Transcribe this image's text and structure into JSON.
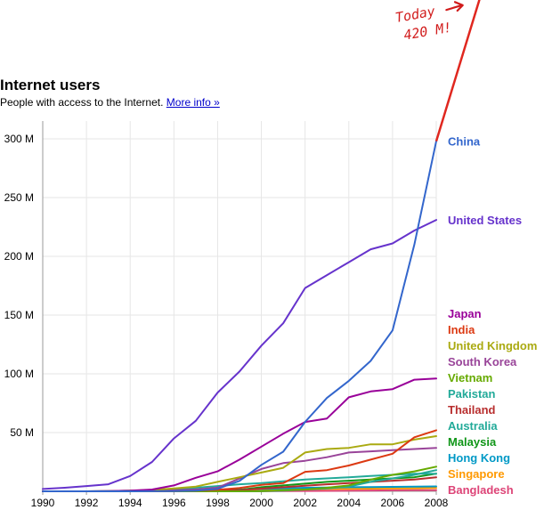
{
  "header": {
    "title": "Internet users",
    "subtitle": "People with access to the Internet.",
    "more_info": "More info »"
  },
  "annotation": {
    "line1": "Today",
    "line2": "420 M!",
    "color": "#e0271f"
  },
  "chart_data": {
    "type": "line",
    "title": "Internet users",
    "subtitle": "People with access to the Internet.",
    "xlabel": "",
    "ylabel": "",
    "xlim": [
      1990,
      2008
    ],
    "ylim": [
      0,
      300
    ],
    "x_ticks": [
      1990,
      1992,
      1994,
      1996,
      1998,
      2000,
      2002,
      2004,
      2006,
      2008
    ],
    "x_tick_labels": [
      "1990",
      "1992",
      "1994",
      "1996",
      "1998",
      "2000",
      "2002",
      "2004",
      "2006",
      "2008"
    ],
    "y_ticks": [
      0,
      50,
      100,
      150,
      200,
      250,
      300
    ],
    "y_tick_labels": [
      "",
      "50 M",
      "100 M",
      "150 M",
      "200 M",
      "250 M",
      "300 M"
    ],
    "grid": true,
    "legend": "right",
    "series": [
      {
        "name": "China",
        "color": "#3366cc",
        "x": [
          1990,
          1991,
          1992,
          1993,
          1994,
          1995,
          1996,
          1997,
          1998,
          1999,
          2000,
          2001,
          2002,
          2003,
          2004,
          2005,
          2006,
          2007,
          2008
        ],
        "y": [
          0,
          0,
          0,
          0,
          0,
          0.1,
          0.2,
          0.6,
          2.1,
          8.9,
          22.5,
          33.7,
          59.1,
          79.5,
          94,
          111,
          137,
          210,
          298
        ]
      },
      {
        "name": "United States",
        "color": "#6633cc",
        "x": [
          1990,
          1991,
          1992,
          1993,
          1994,
          1995,
          1996,
          1997,
          1998,
          1999,
          2000,
          2001,
          2002,
          2003,
          2004,
          2005,
          2006,
          2007,
          2008
        ],
        "y": [
          2,
          3,
          4.5,
          6,
          13,
          25,
          45,
          60,
          84,
          102,
          124,
          143,
          173,
          184,
          195,
          206,
          211,
          222,
          231
        ]
      },
      {
        "name": "Japan",
        "color": "#990099",
        "x": [
          1990,
          1991,
          1992,
          1993,
          1994,
          1995,
          1996,
          1997,
          1998,
          1999,
          2000,
          2001,
          2002,
          2003,
          2004,
          2005,
          2006,
          2007,
          2008
        ],
        "y": [
          0,
          0,
          0,
          0.2,
          0.5,
          1.5,
          5,
          11.5,
          17,
          27,
          38,
          49,
          59,
          62,
          80,
          85,
          87,
          95,
          96
        ]
      },
      {
        "name": "India",
        "color": "#dc3912",
        "x": [
          1990,
          1991,
          1992,
          1993,
          1994,
          1995,
          1996,
          1997,
          1998,
          1999,
          2000,
          2001,
          2002,
          2003,
          2004,
          2005,
          2006,
          2007,
          2008
        ],
        "y": [
          0,
          0,
          0,
          0,
          0,
          0.1,
          0.2,
          0.5,
          1.4,
          2.8,
          5.5,
          7,
          16.6,
          18,
          22,
          27,
          32,
          46,
          52
        ]
      },
      {
        "name": "United Kingdom",
        "color": "#aaaa11",
        "x": [
          1990,
          1991,
          1992,
          1993,
          1994,
          1995,
          1996,
          1997,
          1998,
          1999,
          2000,
          2001,
          2002,
          2003,
          2004,
          2005,
          2006,
          2007,
          2008
        ],
        "y": [
          0,
          0,
          0,
          0.2,
          0.5,
          1.1,
          2.4,
          4,
          8,
          12,
          16,
          20,
          33,
          36,
          37,
          40,
          40,
          44,
          47
        ]
      },
      {
        "name": "South Korea",
        "color": "#994499",
        "x": [
          1990,
          1991,
          1992,
          1993,
          1994,
          1995,
          1996,
          1997,
          1998,
          1999,
          2000,
          2001,
          2002,
          2003,
          2004,
          2005,
          2006,
          2007,
          2008
        ],
        "y": [
          0,
          0,
          0,
          0.1,
          0.1,
          0.4,
          0.8,
          1.6,
          3.1,
          10.9,
          19,
          24,
          26,
          29,
          33,
          34,
          35,
          36,
          37
        ]
      },
      {
        "name": "Vietnam",
        "color": "#66aa00",
        "x": [
          1990,
          1991,
          1992,
          1993,
          1994,
          1995,
          1996,
          1997,
          1998,
          1999,
          2000,
          2001,
          2002,
          2003,
          2004,
          2005,
          2006,
          2007,
          2008
        ],
        "y": [
          0,
          0,
          0,
          0,
          0,
          0,
          0,
          0,
          0,
          0.1,
          0.2,
          1,
          1.5,
          3,
          5,
          10,
          14,
          17,
          21
        ]
      },
      {
        "name": "Pakistan",
        "color": "#22aa99",
        "x": [
          1990,
          1991,
          1992,
          1993,
          1994,
          1995,
          1996,
          1997,
          1998,
          1999,
          2000,
          2001,
          2002,
          2003,
          2004,
          2005,
          2006,
          2007,
          2008
        ],
        "y": [
          0,
          0,
          0,
          0,
          0,
          0,
          0,
          0,
          0,
          0,
          0.1,
          0.5,
          1.5,
          2.5,
          4,
          8,
          11,
          14,
          18
        ]
      },
      {
        "name": "Thailand",
        "color": "#b82e2e",
        "x": [
          1990,
          1991,
          1992,
          1993,
          1994,
          1995,
          1996,
          1997,
          1998,
          1999,
          2000,
          2001,
          2002,
          2003,
          2004,
          2005,
          2006,
          2007,
          2008
        ],
        "y": [
          0,
          0,
          0,
          0,
          0,
          0.1,
          0.2,
          0.4,
          0.8,
          1,
          2.3,
          3.5,
          4.8,
          6,
          7,
          8,
          9,
          10,
          12
        ]
      },
      {
        "name": "Australia",
        "color": "#22aa99",
        "x": [
          1990,
          1991,
          1992,
          1993,
          1994,
          1995,
          1996,
          1997,
          1998,
          1999,
          2000,
          2001,
          2002,
          2003,
          2004,
          2005,
          2006,
          2007,
          2008
        ],
        "y": [
          0,
          0,
          0,
          0.2,
          0.5,
          0.8,
          1.6,
          3,
          4.5,
          6,
          7,
          8.5,
          10,
          11,
          12,
          13,
          14,
          15,
          15
        ]
      },
      {
        "name": "Malaysia",
        "color": "#109618",
        "x": [
          1990,
          1991,
          1992,
          1993,
          1994,
          1995,
          1996,
          1997,
          1998,
          1999,
          2000,
          2001,
          2002,
          2003,
          2004,
          2005,
          2006,
          2007,
          2008
        ],
        "y": [
          0,
          0,
          0,
          0,
          0,
          0,
          0.1,
          0.3,
          0.7,
          1.2,
          3.5,
          5,
          6.5,
          8,
          9,
          10,
          11,
          12,
          15
        ]
      },
      {
        "name": "Hong Kong",
        "color": "#0099c6",
        "x": [
          1990,
          1991,
          1992,
          1993,
          1994,
          1995,
          1996,
          1997,
          1998,
          1999,
          2000,
          2001,
          2002,
          2003,
          2004,
          2005,
          2006,
          2007,
          2008
        ],
        "y": [
          0,
          0,
          0,
          0,
          0,
          0.1,
          0.3,
          0.6,
          0.9,
          1.5,
          2,
          2.6,
          3,
          3.2,
          3.5,
          3.6,
          3.8,
          4,
          4.2
        ]
      },
      {
        "name": "Singapore",
        "color": "#ff9900",
        "x": [
          1990,
          1991,
          1992,
          1993,
          1994,
          1995,
          1996,
          1997,
          1998,
          1999,
          2000,
          2001,
          2002,
          2003,
          2004,
          2005,
          2006,
          2007,
          2008
        ],
        "y": [
          0,
          0,
          0,
          0,
          0,
          0.1,
          0.2,
          0.4,
          0.6,
          0.9,
          1.2,
          1.5,
          1.7,
          2,
          2.1,
          2.3,
          2.4,
          2.6,
          2.9
        ]
      },
      {
        "name": "Bangladesh",
        "color": "#dd4477",
        "x": [
          1990,
          1991,
          1992,
          1993,
          1994,
          1995,
          1996,
          1997,
          1998,
          1999,
          2000,
          2001,
          2002,
          2003,
          2004,
          2005,
          2006,
          2007,
          2008
        ],
        "y": [
          0,
          0,
          0,
          0,
          0,
          0,
          0,
          0,
          0,
          0,
          0.1,
          0.2,
          0.3,
          0.4,
          0.5,
          0.7,
          0.8,
          0.9,
          1
        ]
      }
    ],
    "extension": {
      "name": "Today 420 M!",
      "color": "#e0271f",
      "x": [
        2008,
        2010
      ],
      "y": [
        298,
        420
      ]
    }
  }
}
